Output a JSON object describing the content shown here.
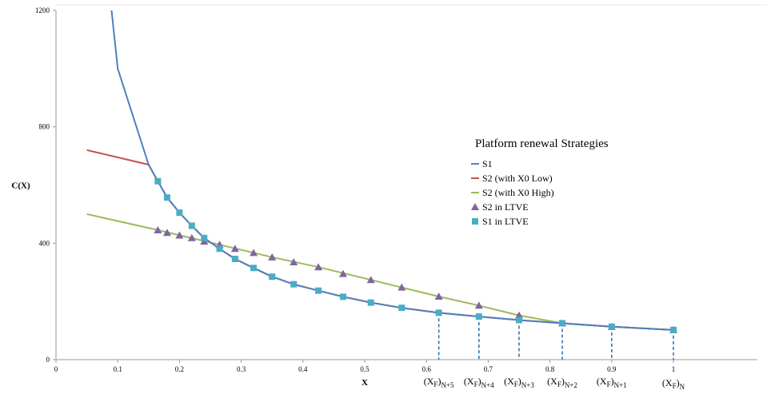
{
  "chart_data": {
    "type": "line",
    "xlabel": "X",
    "ylabel": "C(X)",
    "xlim": [
      0,
      1
    ],
    "ylim": [
      0,
      1200
    ],
    "x_ticks": [
      0,
      0.1,
      0.2,
      0.3,
      0.4,
      0.5,
      0.6,
      0.7,
      0.8,
      0.9,
      1
    ],
    "x_tick_labels": [
      "0",
      "0.1",
      "0.2",
      "0.3",
      "0.4",
      "0.5",
      "0.6",
      "0.7",
      "0.8",
      "0.9",
      "1"
    ],
    "y_ticks": [
      0,
      400,
      800,
      1200
    ],
    "y_tick_labels": [
      "0",
      "400",
      "800",
      "1200"
    ],
    "grid": false,
    "legend": {
      "title": "Platform renewal Strategies",
      "placement": "center-right"
    },
    "series": [
      {
        "name": "S1",
        "kind": "line",
        "color": "#4f81bd",
        "points": [
          [
            0.09,
            1200
          ],
          [
            0.1,
            1000
          ],
          [
            0.15,
            670
          ],
          [
            0.165,
            613
          ],
          [
            0.18,
            557
          ],
          [
            0.2,
            505
          ],
          [
            0.22,
            460
          ],
          [
            0.24,
            418
          ],
          [
            0.265,
            381
          ],
          [
            0.29,
            346
          ],
          [
            0.32,
            315
          ],
          [
            0.35,
            285
          ],
          [
            0.385,
            259
          ],
          [
            0.425,
            237
          ],
          [
            0.465,
            216
          ],
          [
            0.51,
            196
          ],
          [
            0.56,
            178
          ],
          [
            0.62,
            161
          ],
          [
            0.685,
            148
          ],
          [
            0.75,
            136
          ],
          [
            0.82,
            125
          ],
          [
            0.9,
            113
          ],
          [
            1.0,
            102
          ]
        ]
      },
      {
        "name": "S2 (with X0 Low)",
        "kind": "line",
        "color": "#c0504d",
        "points": [
          [
            0.05,
            720
          ],
          [
            0.15,
            670
          ],
          [
            0.165,
            613
          ],
          [
            0.18,
            557
          ],
          [
            0.2,
            505
          ],
          [
            0.22,
            460
          ],
          [
            0.24,
            418
          ],
          [
            0.265,
            381
          ],
          [
            0.29,
            346
          ],
          [
            0.32,
            315
          ],
          [
            0.35,
            285
          ],
          [
            0.385,
            259
          ],
          [
            0.425,
            237
          ],
          [
            0.465,
            216
          ],
          [
            0.51,
            196
          ],
          [
            0.56,
            178
          ],
          [
            0.62,
            161
          ],
          [
            0.685,
            148
          ],
          [
            0.75,
            136
          ],
          [
            0.82,
            125
          ],
          [
            0.9,
            113
          ],
          [
            1.0,
            102
          ]
        ]
      },
      {
        "name": "S2 (with X0 High)",
        "kind": "line",
        "color": "#9bbb59",
        "points": [
          [
            0.05,
            500
          ],
          [
            0.165,
            445
          ],
          [
            0.265,
            395
          ],
          [
            0.35,
            352
          ],
          [
            0.425,
            318
          ],
          [
            0.51,
            274
          ],
          [
            0.56,
            248
          ],
          [
            0.62,
            217
          ],
          [
            0.685,
            186
          ],
          [
            0.75,
            152
          ],
          [
            0.82,
            125
          ],
          [
            0.9,
            113
          ],
          [
            1.0,
            102
          ]
        ]
      },
      {
        "name": "S2 in LTVE",
        "kind": "markers",
        "marker": "triangle",
        "color": "#8064a2",
        "points": [
          [
            0.165,
            445
          ],
          [
            0.18,
            436
          ],
          [
            0.2,
            427
          ],
          [
            0.22,
            418
          ],
          [
            0.24,
            406
          ],
          [
            0.265,
            395
          ],
          [
            0.29,
            381
          ],
          [
            0.32,
            367
          ],
          [
            0.35,
            352
          ],
          [
            0.385,
            335
          ],
          [
            0.425,
            318
          ],
          [
            0.465,
            295
          ],
          [
            0.51,
            274
          ],
          [
            0.56,
            248
          ],
          [
            0.62,
            217
          ],
          [
            0.685,
            186
          ],
          [
            0.75,
            152
          ],
          [
            0.82,
            125
          ],
          [
            0.9,
            113
          ],
          [
            1.0,
            102
          ]
        ]
      },
      {
        "name": "S1 in LTVE",
        "kind": "markers",
        "marker": "square",
        "color": "#4bacc6",
        "points": [
          [
            0.165,
            613
          ],
          [
            0.18,
            557
          ],
          [
            0.2,
            505
          ],
          [
            0.22,
            460
          ],
          [
            0.24,
            418
          ],
          [
            0.265,
            381
          ],
          [
            0.29,
            346
          ],
          [
            0.32,
            315
          ],
          [
            0.35,
            285
          ],
          [
            0.385,
            259
          ],
          [
            0.425,
            237
          ],
          [
            0.465,
            216
          ],
          [
            0.51,
            196
          ],
          [
            0.56,
            178
          ],
          [
            0.62,
            161
          ],
          [
            0.685,
            148
          ],
          [
            0.75,
            136
          ],
          [
            0.82,
            125
          ],
          [
            0.9,
            113
          ],
          [
            1.0,
            102
          ]
        ]
      }
    ],
    "annotations": {
      "dashed_line_color": "#2e75b6",
      "xf_labels": [
        {
          "x": 0.62,
          "y": 161,
          "base": "(X",
          "sub": "F",
          "close": ")",
          "index": "N+5"
        },
        {
          "x": 0.685,
          "y": 148,
          "base": "(X",
          "sub": "F",
          "close": ")",
          "index": "N+4"
        },
        {
          "x": 0.75,
          "y": 136,
          "base": "(X",
          "sub": "F",
          "close": ")",
          "index": "N+3"
        },
        {
          "x": 0.82,
          "y": 125,
          "base": "(X",
          "sub": "F",
          "close": ")",
          "index": "N+2"
        },
        {
          "x": 0.9,
          "y": 113,
          "base": "(X",
          "sub": "F",
          "close": ")",
          "index": "N+1"
        },
        {
          "x": 1.0,
          "y": 102,
          "base": "(X",
          "sub": "F",
          "close": ")",
          "index": "N"
        }
      ]
    }
  }
}
